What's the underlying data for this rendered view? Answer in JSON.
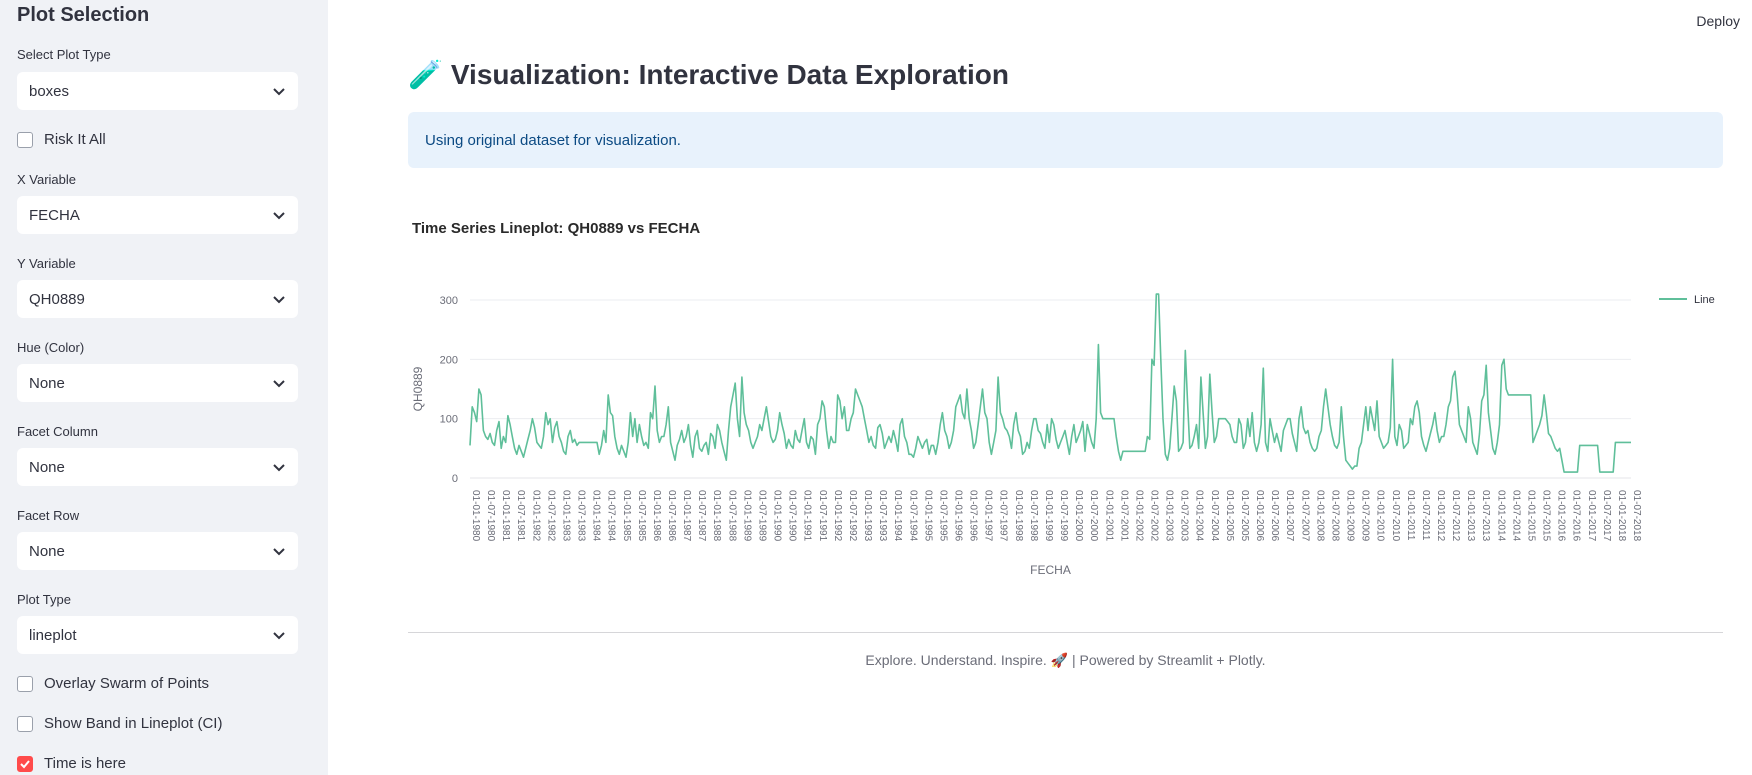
{
  "sidebar": {
    "title": "Plot Selection",
    "plot_type_select": {
      "label": "Select Plot Type",
      "value": "boxes"
    },
    "risk_checkbox": {
      "label": "Risk It All",
      "checked": false
    },
    "x_variable": {
      "label": "X Variable",
      "value": "FECHA"
    },
    "y_variable": {
      "label": "Y Variable",
      "value": "QH0889"
    },
    "hue": {
      "label": "Hue (Color)",
      "value": "None"
    },
    "facet_column": {
      "label": "Facet Column",
      "value": "None"
    },
    "facet_row": {
      "label": "Facet Row",
      "value": "None"
    },
    "plot_type": {
      "label": "Plot Type",
      "value": "lineplot"
    },
    "overlay_checkbox": {
      "label": "Overlay Swarm of Points",
      "checked": false
    },
    "band_checkbox": {
      "label": "Show Band in Lineplot (CI)",
      "checked": false
    },
    "time_checkbox": {
      "label": "Time is here",
      "checked": true
    }
  },
  "header": {
    "deploy_label": "Deploy"
  },
  "main": {
    "title_icon": "🧪",
    "title": "Visualization: Interactive Data Exploration",
    "info_text": "Using original dataset for visualization.",
    "footer_text": "Explore. Understand. Inspire. 🚀 | Powered by Streamlit + Plotly."
  },
  "colors": {
    "line": "#5fbf9a",
    "accent": "#ff4b4b",
    "info_bg": "#e8f2fc",
    "sidebar_bg": "#f0f2f6"
  },
  "chart_data": {
    "type": "line",
    "title": "Time Series Lineplot: QH0889 vs FECHA",
    "xlabel": "FECHA",
    "ylabel": "QH0889",
    "ylim": [
      0,
      300
    ],
    "yticks": [
      0,
      100,
      200,
      300
    ],
    "legend": {
      "position": "top-right",
      "entries": [
        "Line"
      ]
    },
    "grid": true,
    "x_ticks": [
      "01-01-1980",
      "01-07-1980",
      "01-01-1981",
      "01-07-1981",
      "01-01-1982",
      "01-07-1982",
      "01-01-1983",
      "01-07-1983",
      "01-01-1984",
      "01-07-1984",
      "01-01-1985",
      "01-07-1985",
      "01-01-1986",
      "01-07-1986",
      "01-01-1987",
      "01-07-1987",
      "01-01-1988",
      "01-07-1988",
      "01-01-1989",
      "01-07-1989",
      "01-01-1990",
      "01-07-1990",
      "01-01-1991",
      "01-07-1991",
      "01-01-1992",
      "01-07-1992",
      "01-01-1993",
      "01-07-1993",
      "01-01-1994",
      "01-07-1994",
      "01-01-1995",
      "01-07-1995",
      "01-01-1996",
      "01-07-1996",
      "01-01-1997",
      "01-07-1997",
      "01-01-1998",
      "01-07-1998",
      "01-01-1999",
      "01-07-1999",
      "01-01-2000",
      "01-07-2000",
      "01-01-2001",
      "01-07-2001",
      "01-01-2002",
      "01-07-2002",
      "01-01-2003",
      "01-07-2003",
      "01-01-2004",
      "01-07-2004",
      "01-01-2005",
      "01-07-2005",
      "01-01-2006",
      "01-07-2006",
      "01-01-2007",
      "01-07-2007",
      "01-01-2008",
      "01-07-2008",
      "01-01-2009",
      "01-07-2009",
      "01-01-2010",
      "01-07-2010",
      "01-01-2011",
      "01-07-2011",
      "01-01-2012",
      "01-07-2012",
      "01-01-2013",
      "01-07-2013",
      "01-01-2014",
      "01-07-2014",
      "01-01-2015",
      "01-07-2015",
      "01-01-2016",
      "01-07-2016",
      "01-01-2017",
      "01-07-2017",
      "01-01-2018",
      "01-07-2018"
    ],
    "y": [
      55,
      120,
      110,
      95,
      150,
      140,
      80,
      70,
      65,
      75,
      60,
      55,
      80,
      95,
      50,
      70,
      60,
      105,
      90,
      70,
      50,
      40,
      55,
      45,
      35,
      50,
      65,
      80,
      100,
      85,
      60,
      55,
      50,
      70,
      110,
      90,
      100,
      60,
      85,
      95,
      70,
      60,
      45,
      40,
      70,
      80,
      60,
      65,
      55,
      60,
      60,
      60,
      60,
      60,
      60,
      60,
      60,
      60,
      40,
      55,
      80,
      60,
      140,
      110,
      105,
      70,
      50,
      40,
      55,
      45,
      35,
      60,
      110,
      70,
      100,
      60,
      90,
      70,
      55,
      60,
      50,
      110,
      100,
      155,
      80,
      60,
      70,
      70,
      90,
      120,
      60,
      45,
      30,
      55,
      65,
      80,
      60,
      70,
      90,
      55,
      35,
      70,
      80,
      50,
      45,
      55,
      60,
      40,
      75,
      70,
      50,
      90,
      80,
      60,
      45,
      30,
      80,
      120,
      140,
      160,
      100,
      70,
      170,
      110,
      90,
      80,
      60,
      50,
      60,
      70,
      90,
      80,
      100,
      120,
      95,
      70,
      60,
      65,
      80,
      110,
      90,
      75,
      50,
      65,
      55,
      50,
      80,
      65,
      60,
      80,
      100,
      60,
      50,
      70,
      65,
      40,
      90,
      100,
      130,
      120,
      80,
      50,
      70,
      60,
      60,
      140,
      130,
      100,
      120,
      80,
      80,
      100,
      110,
      150,
      140,
      130,
      120,
      100,
      80,
      60,
      70,
      55,
      50,
      85,
      90,
      75,
      50,
      60,
      70,
      60,
      80,
      65,
      45,
      90,
      100,
      70,
      60,
      40,
      40,
      35,
      50,
      70,
      60,
      50,
      60,
      65,
      40,
      55,
      55,
      40,
      60,
      90,
      110,
      80,
      70,
      50,
      60,
      80,
      120,
      130,
      140,
      110,
      100,
      150,
      100,
      80,
      50,
      60,
      90,
      120,
      150,
      110,
      100,
      60,
      40,
      60,
      80,
      170,
      110,
      100,
      85,
      80,
      70,
      50,
      90,
      110,
      80,
      70,
      40,
      45,
      60,
      50,
      80,
      100,
      100,
      80,
      75,
      60,
      50,
      90,
      60,
      100,
      90,
      65,
      50,
      60,
      70,
      80,
      60,
      40,
      70,
      90,
      60,
      70,
      80,
      95,
      45,
      90,
      75,
      60,
      50,
      100,
      225,
      110,
      100,
      100,
      100,
      100,
      100,
      100,
      70,
      45,
      30,
      45,
      45,
      45,
      45,
      45,
      45,
      45,
      45,
      45,
      45,
      45,
      70,
      65,
      200,
      190,
      310,
      310,
      200,
      100,
      40,
      30,
      50,
      100,
      155,
      130,
      45,
      50,
      60,
      215,
      130,
      50,
      55,
      70,
      90,
      50,
      170,
      110,
      50,
      70,
      175,
      110,
      60,
      70,
      100,
      100,
      100,
      100,
      95,
      90,
      70,
      60,
      60,
      100,
      90,
      50,
      60,
      100,
      70,
      110,
      60,
      45,
      60,
      90,
      185,
      60,
      45,
      100,
      80,
      60,
      75,
      60,
      45,
      80,
      90,
      100,
      100,
      75,
      60,
      45,
      100,
      120,
      85,
      75,
      80,
      60,
      50,
      45,
      50,
      70,
      80,
      120,
      150,
      120,
      90,
      70,
      55,
      50,
      60,
      120,
      70,
      30,
      25,
      20,
      15,
      20,
      20,
      50,
      60,
      90,
      120,
      80,
      120,
      100,
      80,
      130,
      70,
      60,
      50,
      55,
      60,
      85,
      200,
      70,
      55,
      90,
      80,
      50,
      55,
      60,
      100,
      90,
      120,
      130,
      110,
      70,
      55,
      45,
      60,
      75,
      90,
      110,
      80,
      60,
      70,
      70,
      90,
      120,
      130,
      170,
      180,
      140,
      90,
      80,
      70,
      60,
      120,
      100,
      60,
      50,
      40,
      75,
      130,
      140,
      190,
      110,
      80,
      50,
      40,
      60,
      90,
      190,
      200,
      150,
      140,
      140,
      140,
      140,
      140,
      140,
      140,
      140,
      140,
      140,
      140,
      60,
      70,
      80,
      90,
      105,
      140,
      110,
      75,
      70,
      60,
      50,
      45,
      50,
      30,
      10,
      10,
      10,
      10,
      10,
      10,
      10,
      55,
      55,
      55,
      55,
      55,
      55,
      55,
      55,
      55,
      10,
      10,
      10,
      10,
      10,
      10,
      10,
      60,
      60,
      60,
      60,
      60,
      60,
      60,
      60
    ]
  }
}
